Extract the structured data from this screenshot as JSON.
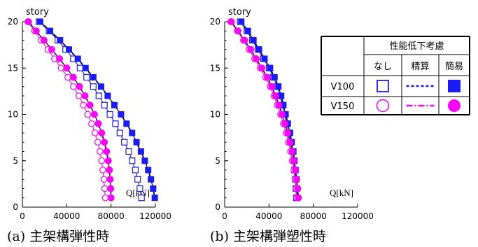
{
  "chart_data": [
    {
      "type": "line",
      "caption": "(a)  主架構弾性時",
      "ylabel": "story",
      "xlabel": "Q[kN]",
      "xlim": [
        0,
        120000
      ],
      "ylim": [
        0,
        20
      ],
      "xticks": [
        "0",
        "40000",
        "80000",
        "120000"
      ],
      "yticks": [
        "0",
        "5",
        "10",
        "15",
        "20"
      ],
      "stories": [
        20,
        19,
        18,
        17,
        16,
        15,
        14,
        13,
        12,
        11,
        10,
        9,
        8,
        7,
        6,
        5,
        4,
        3,
        2,
        1
      ],
      "series": [
        {
          "name": "V100 なし",
          "color": "#1a1aff",
          "line": "solid",
          "marker": "square-open",
          "values": [
            15000,
            24000,
            32000,
            39000,
            46000,
            52000,
            58000,
            64000,
            69000,
            74000,
            79000,
            84000,
            88000,
            92000,
            96000,
            99000,
            102000,
            104000,
            106000,
            107500
          ]
        },
        {
          "name": "V100 精算",
          "color": "#1a1aff",
          "line": "dashed",
          "marker": "none",
          "values": [
            16000,
            25000,
            34000,
            42000,
            50000,
            57000,
            64000,
            71000,
            77000,
            83000,
            89000,
            94000,
            99000,
            103000,
            107000,
            110500,
            113500,
            116000,
            118000,
            119500
          ]
        },
        {
          "name": "V100 簡易",
          "color": "#1a1aff",
          "line": "solid",
          "marker": "square-filled",
          "values": [
            16000,
            25000,
            34000,
            42000,
            50000,
            57000,
            64000,
            71000,
            77000,
            83000,
            89000,
            94000,
            99000,
            103000,
            107000,
            110500,
            113500,
            116000,
            118000,
            119500
          ]
        },
        {
          "name": "V150 なし",
          "color": "#ff00ff",
          "line": "solid",
          "marker": "circle-open",
          "values": [
            5000,
            11000,
            17000,
            23000,
            29000,
            35000,
            41000,
            46000,
            51000,
            55000,
            59000,
            62500,
            65500,
            68000,
            70000,
            71500,
            72500,
            73500,
            74200,
            74800
          ]
        },
        {
          "name": "V150 精算",
          "color": "#ff00ff",
          "line": "dashdot",
          "marker": "none",
          "values": [
            5500,
            12500,
            19500,
            26500,
            33500,
            40000,
            46000,
            51500,
            56500,
            61000,
            65000,
            68500,
            71500,
            74000,
            76000,
            77500,
            78500,
            79200,
            79700,
            80000
          ]
        },
        {
          "name": "V150 簡易",
          "color": "#ff00ff",
          "line": "solid",
          "marker": "circle-filled",
          "values": [
            5500,
            12500,
            19500,
            26500,
            33500,
            40000,
            46000,
            51500,
            56500,
            61000,
            65000,
            68500,
            71500,
            74000,
            76000,
            77500,
            78500,
            79200,
            79700,
            80000
          ]
        }
      ]
    },
    {
      "type": "line",
      "caption": "(b)  主架構弾塑性時",
      "ylabel": "story",
      "xlabel": "Q[kN]",
      "xlim": [
        0,
        120000
      ],
      "ylim": [
        0,
        20
      ],
      "xticks": [
        "0",
        "40000",
        "80000",
        "120000"
      ],
      "yticks": [
        "0",
        "5",
        "10",
        "15",
        "20"
      ],
      "stories": [
        20,
        19,
        18,
        17,
        16,
        15,
        14,
        13,
        12,
        11,
        10,
        9,
        8,
        7,
        6,
        5,
        4,
        3,
        2,
        1
      ],
      "series": [
        {
          "name": "V100 なし",
          "color": "#1a1aff",
          "line": "solid",
          "marker": "square-open",
          "values": [
            14000,
            20000,
            25000,
            30000,
            35000,
            40000,
            44000,
            47500,
            50000,
            52000,
            54000,
            56000,
            58000,
            59500,
            61000,
            62000,
            63000,
            63800,
            64300,
            64700
          ]
        },
        {
          "name": "V100 精算",
          "color": "#1a1aff",
          "line": "dashed",
          "marker": "none",
          "values": [
            15000,
            21000,
            26000,
            31000,
            36000,
            41000,
            45000,
            48500,
            51000,
            53000,
            55000,
            57000,
            59000,
            60500,
            62000,
            63000,
            64000,
            64800,
            65300,
            65700
          ]
        },
        {
          "name": "V100 簡易",
          "color": "#1a1aff",
          "line": "solid",
          "marker": "square-filled",
          "values": [
            15000,
            21000,
            26000,
            31000,
            36000,
            41000,
            45000,
            48500,
            51000,
            53000,
            55000,
            57000,
            59000,
            60500,
            62000,
            63000,
            64000,
            64800,
            65300,
            65700
          ]
        },
        {
          "name": "V150 なし",
          "color": "#ff00ff",
          "line": "solid",
          "marker": "circle-open",
          "values": [
            5500,
            11500,
            17000,
            22000,
            27000,
            32000,
            37000,
            41000,
            44500,
            47500,
            50500,
            53000,
            55500,
            57500,
            59500,
            61000,
            62500,
            63500,
            64500,
            65000
          ]
        },
        {
          "name": "V150 精算",
          "color": "#ff00ff",
          "line": "dashdot",
          "marker": "none",
          "values": [
            6000,
            12000,
            18000,
            23500,
            28500,
            33500,
            38500,
            42500,
            46000,
            49000,
            52000,
            54500,
            57000,
            59000,
            61000,
            62500,
            64000,
            65000,
            66000,
            66500
          ]
        },
        {
          "name": "V150 簡易",
          "color": "#ff00ff",
          "line": "solid",
          "marker": "circle-filled",
          "values": [
            6000,
            12000,
            18000,
            23500,
            28500,
            33500,
            38500,
            42500,
            46000,
            49000,
            52000,
            54500,
            57000,
            59000,
            61000,
            62500,
            64000,
            65000,
            66000,
            66500
          ]
        }
      ]
    }
  ],
  "legend": {
    "header": "性能低下考慮",
    "columns": [
      "なし",
      "精算",
      "簡易"
    ],
    "rows": [
      {
        "label": "V100",
        "color": "#1a1aff",
        "open": "square-open",
        "line": "dashed",
        "filled": "square-filled"
      },
      {
        "label": "V150",
        "color": "#ff00ff",
        "open": "circle-open",
        "line": "dashdot",
        "filled": "circle-filled"
      }
    ]
  }
}
